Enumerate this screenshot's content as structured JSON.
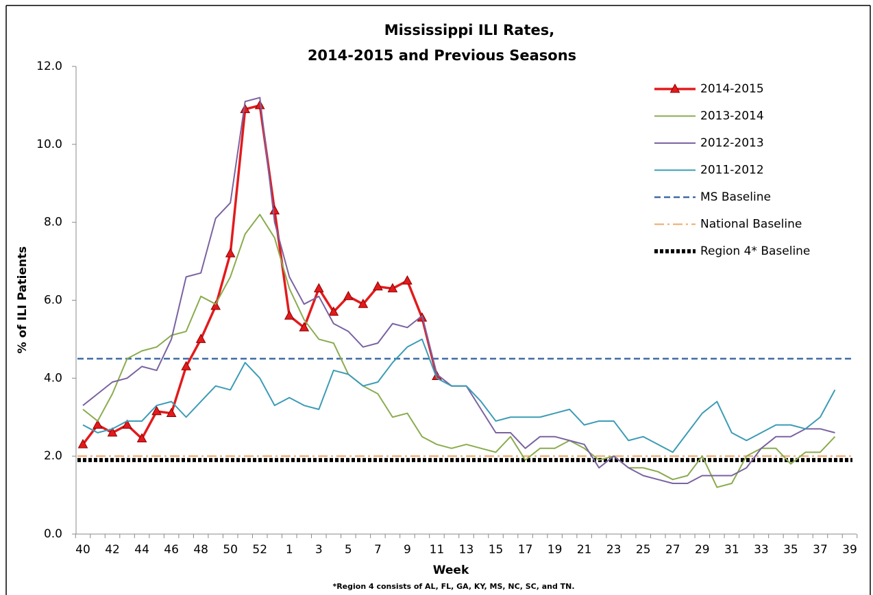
{
  "chart_data": {
    "type": "line",
    "title": [
      "Mississippi ILI Rates,",
      "2014-2015 and Previous Seasons"
    ],
    "x_label": "Week",
    "y_label": "% of ILI Patients",
    "footnote": "*Region 4 consists of AL, FL, GA, KY, MS, NC, SC, and TN.",
    "categories": [
      "40",
      null,
      "42",
      null,
      "44",
      null,
      "46",
      null,
      "48",
      null,
      "50",
      null,
      "52",
      null,
      "1",
      null,
      "3",
      null,
      "5",
      null,
      "7",
      null,
      "9",
      null,
      "11",
      null,
      "13",
      null,
      "15",
      null,
      "17",
      null,
      "19",
      null,
      "21",
      null,
      "23",
      null,
      "25",
      null,
      "27",
      null,
      "29",
      null,
      "31",
      null,
      "33",
      null,
      "35",
      null,
      "37",
      null,
      "39"
    ],
    "ylim": [
      0,
      12
    ],
    "yticks": [
      {
        "value": 0,
        "label": "0.0"
      },
      {
        "value": 2,
        "label": "2.0"
      },
      {
        "value": 4,
        "label": "4.0"
      },
      {
        "value": 6,
        "label": "6.0"
      },
      {
        "value": 8,
        "label": "8.0"
      },
      {
        "value": 10,
        "label": "10.0"
      },
      {
        "value": 12,
        "label": "12.0"
      }
    ],
    "grid": false,
    "series": [
      {
        "name": "2014-2015",
        "color": "#e31a1c",
        "width": 3.5,
        "marker": "triangle",
        "values": [
          2.3,
          2.8,
          2.6,
          2.8,
          2.45,
          3.15,
          3.1,
          4.3,
          5.0,
          5.85,
          7.2,
          10.9,
          11.0,
          8.3,
          5.6,
          5.3,
          6.3,
          5.7,
          6.1,
          5.9,
          6.35,
          6.3,
          6.5,
          5.55,
          4.05,
          null,
          null,
          null,
          null,
          null,
          null,
          null,
          null,
          null,
          null,
          null,
          null,
          null,
          null,
          null,
          null,
          null,
          null,
          null,
          null,
          null,
          null,
          null,
          null,
          null,
          null,
          null,
          null
        ]
      },
      {
        "name": "2013-2014",
        "color": "#8aab4e",
        "width": 2,
        "values": [
          3.2,
          2.9,
          3.6,
          4.5,
          4.7,
          4.8,
          5.1,
          5.2,
          6.1,
          5.9,
          6.6,
          7.7,
          8.2,
          7.6,
          6.3,
          5.5,
          5.0,
          4.9,
          4.1,
          3.8,
          3.6,
          3.0,
          3.1,
          2.5,
          2.3,
          2.2,
          2.3,
          2.2,
          2.1,
          2.5,
          1.9,
          2.2,
          2.2,
          2.4,
          2.2,
          1.9,
          2.0,
          1.7,
          1.7,
          1.6,
          1.4,
          1.5,
          2.0,
          1.2,
          1.3,
          2.0,
          2.2,
          2.2,
          1.8,
          2.1,
          2.1,
          2.5,
          null
        ]
      },
      {
        "name": "2012-2013",
        "color": "#7a62a0",
        "width": 2,
        "values": [
          3.3,
          3.6,
          3.9,
          4.0,
          4.3,
          4.2,
          5.0,
          6.6,
          6.7,
          8.1,
          8.5,
          11.1,
          11.2,
          8.0,
          6.6,
          5.9,
          6.1,
          5.4,
          5.2,
          4.8,
          4.9,
          5.4,
          5.3,
          5.6,
          4.1,
          3.8,
          3.8,
          3.2,
          2.6,
          2.6,
          2.2,
          2.5,
          2.5,
          2.4,
          2.3,
          1.7,
          2.0,
          1.7,
          1.5,
          1.4,
          1.3,
          1.3,
          1.5,
          1.5,
          1.5,
          1.7,
          2.2,
          2.5,
          2.5,
          2.7,
          2.7,
          2.6,
          null
        ]
      },
      {
        "name": "2011-2012",
        "color": "#3b9bb5",
        "width": 2,
        "values": [
          2.8,
          2.6,
          2.7,
          2.9,
          2.9,
          3.3,
          3.4,
          3.0,
          3.4,
          3.8,
          3.7,
          4.4,
          4.0,
          3.3,
          3.5,
          3.3,
          3.2,
          4.2,
          4.1,
          3.8,
          3.9,
          4.4,
          4.8,
          5.0,
          4.0,
          3.8,
          3.8,
          3.4,
          2.9,
          3.0,
          3.0,
          3.0,
          3.1,
          3.2,
          2.8,
          2.9,
          2.9,
          2.4,
          2.5,
          2.3,
          2.1,
          2.6,
          3.1,
          3.4,
          2.6,
          2.4,
          2.6,
          2.8,
          2.8,
          2.7,
          3.0,
          3.7,
          null
        ]
      }
    ],
    "baselines": [
      {
        "name": "MS Baseline",
        "color": "#3d6aa5",
        "value": 4.5,
        "dash": "dashed"
      },
      {
        "name": "National Baseline",
        "color": "#f2a766",
        "value": 2.0,
        "dash": "dashdot"
      },
      {
        "name": "Region 4* Baseline",
        "color": "#000000",
        "value": 1.9,
        "dash": "dotted"
      }
    ],
    "legend": "upper right"
  }
}
